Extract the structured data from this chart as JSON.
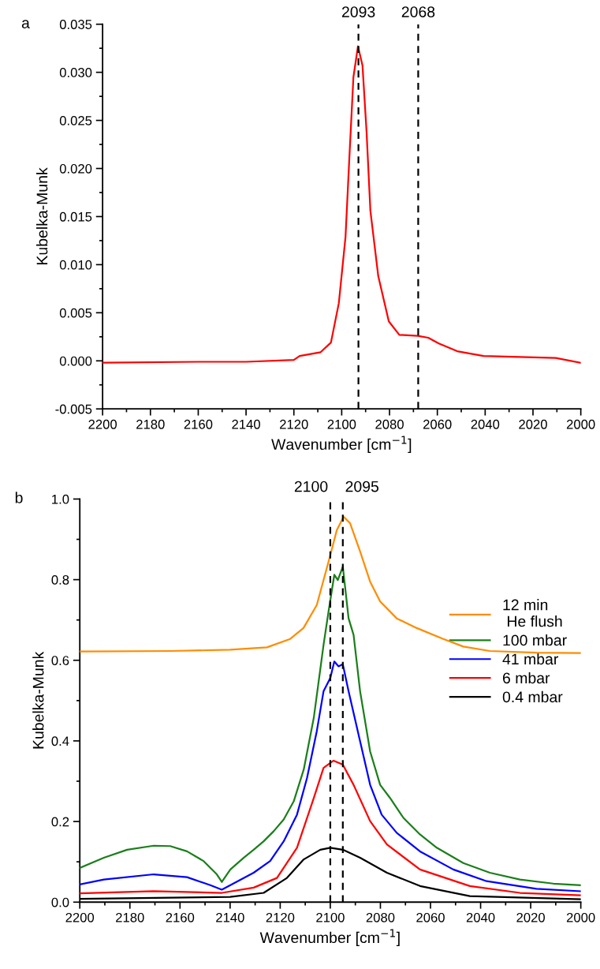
{
  "chart_data": [
    {
      "type": "line",
      "title": "a",
      "xlabel": "Wavenumber [cm$^{−1}$]",
      "ylabel": "Kubelka-Munk",
      "xlim": [
        2200,
        2000
      ],
      "xticks": [
        2200,
        2180,
        2160,
        2140,
        2120,
        2100,
        2080,
        2060,
        2040,
        2020,
        2000
      ],
      "ylim": [
        -0.005,
        0.035
      ],
      "yticks": [
        {
          "value": -0.005,
          "label": "-0.005"
        },
        {
          "value": 0,
          "label": "0.000"
        },
        {
          "value": 0.005,
          "label": "0.005"
        },
        {
          "value": 0.01,
          "label": "0.010"
        },
        {
          "value": 0.015,
          "label": "0.015"
        },
        {
          "value": 0.02,
          "label": "0.020"
        },
        {
          "value": 0.025,
          "label": "0.025"
        },
        {
          "value": 0.03,
          "label": "0.030"
        },
        {
          "value": 0.035,
          "label": "0.035"
        }
      ],
      "grid": false,
      "legend": false,
      "ref_lines": [
        {
          "axis": "x",
          "value": 2093,
          "label": "2093",
          "color": "#000000",
          "line_style": "dashed"
        },
        {
          "axis": "x",
          "value": 2068,
          "label": "2068",
          "color": "#000000",
          "line_style": "dashed"
        }
      ],
      "series": [
        {
          "color": "#ff0000",
          "x": [
            2200,
            2160,
            2140,
            2120,
            2117.6,
            2108.8,
            2104.5,
            2101.2,
            2098.4,
            2096.8,
            2095.1,
            2093.2,
            2091.3,
            2089.6,
            2088.0,
            2084.7,
            2080.3,
            2075.9,
            2068.2,
            2063.8,
            2059.4,
            2051.7,
            2040.7,
            2010.5,
            2000
          ],
          "values": [
            -0.0002,
            -0.0001,
            -0.0001,
            0.0001,
            0.0005,
            0.0009,
            0.0019,
            0.006,
            0.0129,
            0.0211,
            0.0295,
            0.0327,
            0.0307,
            0.0238,
            0.0156,
            0.0088,
            0.0041,
            0.0027,
            0.0026,
            0.0024,
            0.0018,
            0.001,
            0.0005,
            0.0003,
            -0.0002
          ]
        }
      ]
    },
    {
      "type": "line",
      "title": "b",
      "xlabel": "Wavenumber [cm$^{−1}$]",
      "ylabel": "Kubelka-Munk",
      "xlim": [
        2200,
        2000
      ],
      "xticks": [
        2200,
        2180,
        2160,
        2140,
        2120,
        2100,
        2080,
        2060,
        2040,
        2020,
        2000
      ],
      "ylim": [
        0,
        1.0
      ],
      "yticks": [
        {
          "value": 0,
          "label": "0.0"
        },
        {
          "value": 0.2,
          "label": "0.2"
        },
        {
          "value": 0.4,
          "label": "0.4"
        },
        {
          "value": 0.6,
          "label": "0.6"
        },
        {
          "value": 0.8,
          "label": "0.8"
        },
        {
          "value": 1.0,
          "label": "1.0"
        }
      ],
      "grid": false,
      "legend": "right",
      "ref_lines": [
        {
          "axis": "x",
          "value": 2100,
          "label": "2100",
          "color": "#000000",
          "line_style": "dashed"
        },
        {
          "axis": "x",
          "value": 2095,
          "label": "2095",
          "color": "#000000",
          "line_style": "dashed"
        }
      ],
      "series": [
        {
          "name": "12 min\n He flush",
          "color": "#ff8c00",
          "x": [
            2200,
            2163.9,
            2140,
            2125.3,
            2116,
            2110.7,
            2105.4,
            2100,
            2097.4,
            2094.7,
            2092.1,
            2088.1,
            2084.1,
            2080.1,
            2073.5,
            2065.5,
            2054.9,
            2046.9,
            2036.3,
            2017.7,
            2000
          ],
          "values": [
            0.622,
            0.623,
            0.626,
            0.632,
            0.653,
            0.68,
            0.737,
            0.861,
            0.923,
            0.956,
            0.94,
            0.87,
            0.795,
            0.746,
            0.704,
            0.68,
            0.653,
            0.634,
            0.623,
            0.619,
            0.618
          ]
        },
        {
          "name": "100 mbar",
          "color": "#1a7f1a",
          "x": [
            2200,
            2190.4,
            2181.1,
            2170.5,
            2163.9,
            2157.2,
            2150.6,
            2145.3,
            2143.3,
            2139.9,
            2134.6,
            2130.6,
            2126.6,
            2122.6,
            2118.6,
            2114.6,
            2110.6,
            2106.6,
            2102.7,
            2100.7,
            2098.4,
            2097.0,
            2095,
            2092.7,
            2090.7,
            2088.1,
            2084.1,
            2080.1,
            2076.1,
            2070.8,
            2064.2,
            2057.5,
            2046.9,
            2036.3,
            2024.3,
            2011.0,
            2000
          ],
          "values": [
            0.085,
            0.11,
            0.13,
            0.14,
            0.139,
            0.126,
            0.102,
            0.069,
            0.05,
            0.081,
            0.11,
            0.13,
            0.151,
            0.176,
            0.205,
            0.25,
            0.329,
            0.457,
            0.638,
            0.721,
            0.812,
            0.799,
            0.832,
            0.704,
            0.663,
            0.523,
            0.374,
            0.291,
            0.258,
            0.209,
            0.168,
            0.135,
            0.097,
            0.073,
            0.056,
            0.046,
            0.042
          ]
        },
        {
          "name": "41 mbar",
          "color": "#0000ff",
          "x": [
            2200,
            2190.4,
            2170.5,
            2157.2,
            2147.9,
            2143.3,
            2139.9,
            2130.6,
            2124.0,
            2118.6,
            2113.3,
            2109.3,
            2105.4,
            2102.7,
            2100,
            2098.4,
            2096.7,
            2095,
            2092.7,
            2088.1,
            2084.1,
            2079.5,
            2073.5,
            2064.2,
            2050.9,
            2037.6,
            2017.7,
            2000
          ],
          "values": [
            0.044,
            0.056,
            0.069,
            0.062,
            0.042,
            0.031,
            0.042,
            0.073,
            0.102,
            0.151,
            0.217,
            0.308,
            0.424,
            0.523,
            0.556,
            0.597,
            0.585,
            0.59,
            0.523,
            0.399,
            0.291,
            0.217,
            0.172,
            0.126,
            0.081,
            0.052,
            0.033,
            0.027
          ]
        },
        {
          "name": "6 mbar",
          "color": "#ff0000",
          "x": [
            2200,
            2170.5,
            2143.3,
            2130.6,
            2121.3,
            2113.3,
            2106.6,
            2102.7,
            2098.7,
            2095,
            2090.7,
            2084.1,
            2077.4,
            2064.2,
            2044.3,
            2024.3,
            2000
          ],
          "values": [
            0.022,
            0.027,
            0.023,
            0.036,
            0.06,
            0.135,
            0.258,
            0.333,
            0.351,
            0.341,
            0.291,
            0.201,
            0.143,
            0.081,
            0.04,
            0.023,
            0.017
          ]
        },
        {
          "name": "0.4 mbar",
          "color": "#000000",
          "x": [
            2200,
            2163.9,
            2140,
            2126.6,
            2117.3,
            2110.6,
            2104,
            2100,
            2095,
            2088.1,
            2077.4,
            2064.2,
            2044.3,
            2000
          ],
          "values": [
            0.008,
            0.011,
            0.013,
            0.023,
            0.06,
            0.106,
            0.13,
            0.135,
            0.13,
            0.11,
            0.073,
            0.04,
            0.015,
            0.007
          ]
        }
      ]
    }
  ]
}
